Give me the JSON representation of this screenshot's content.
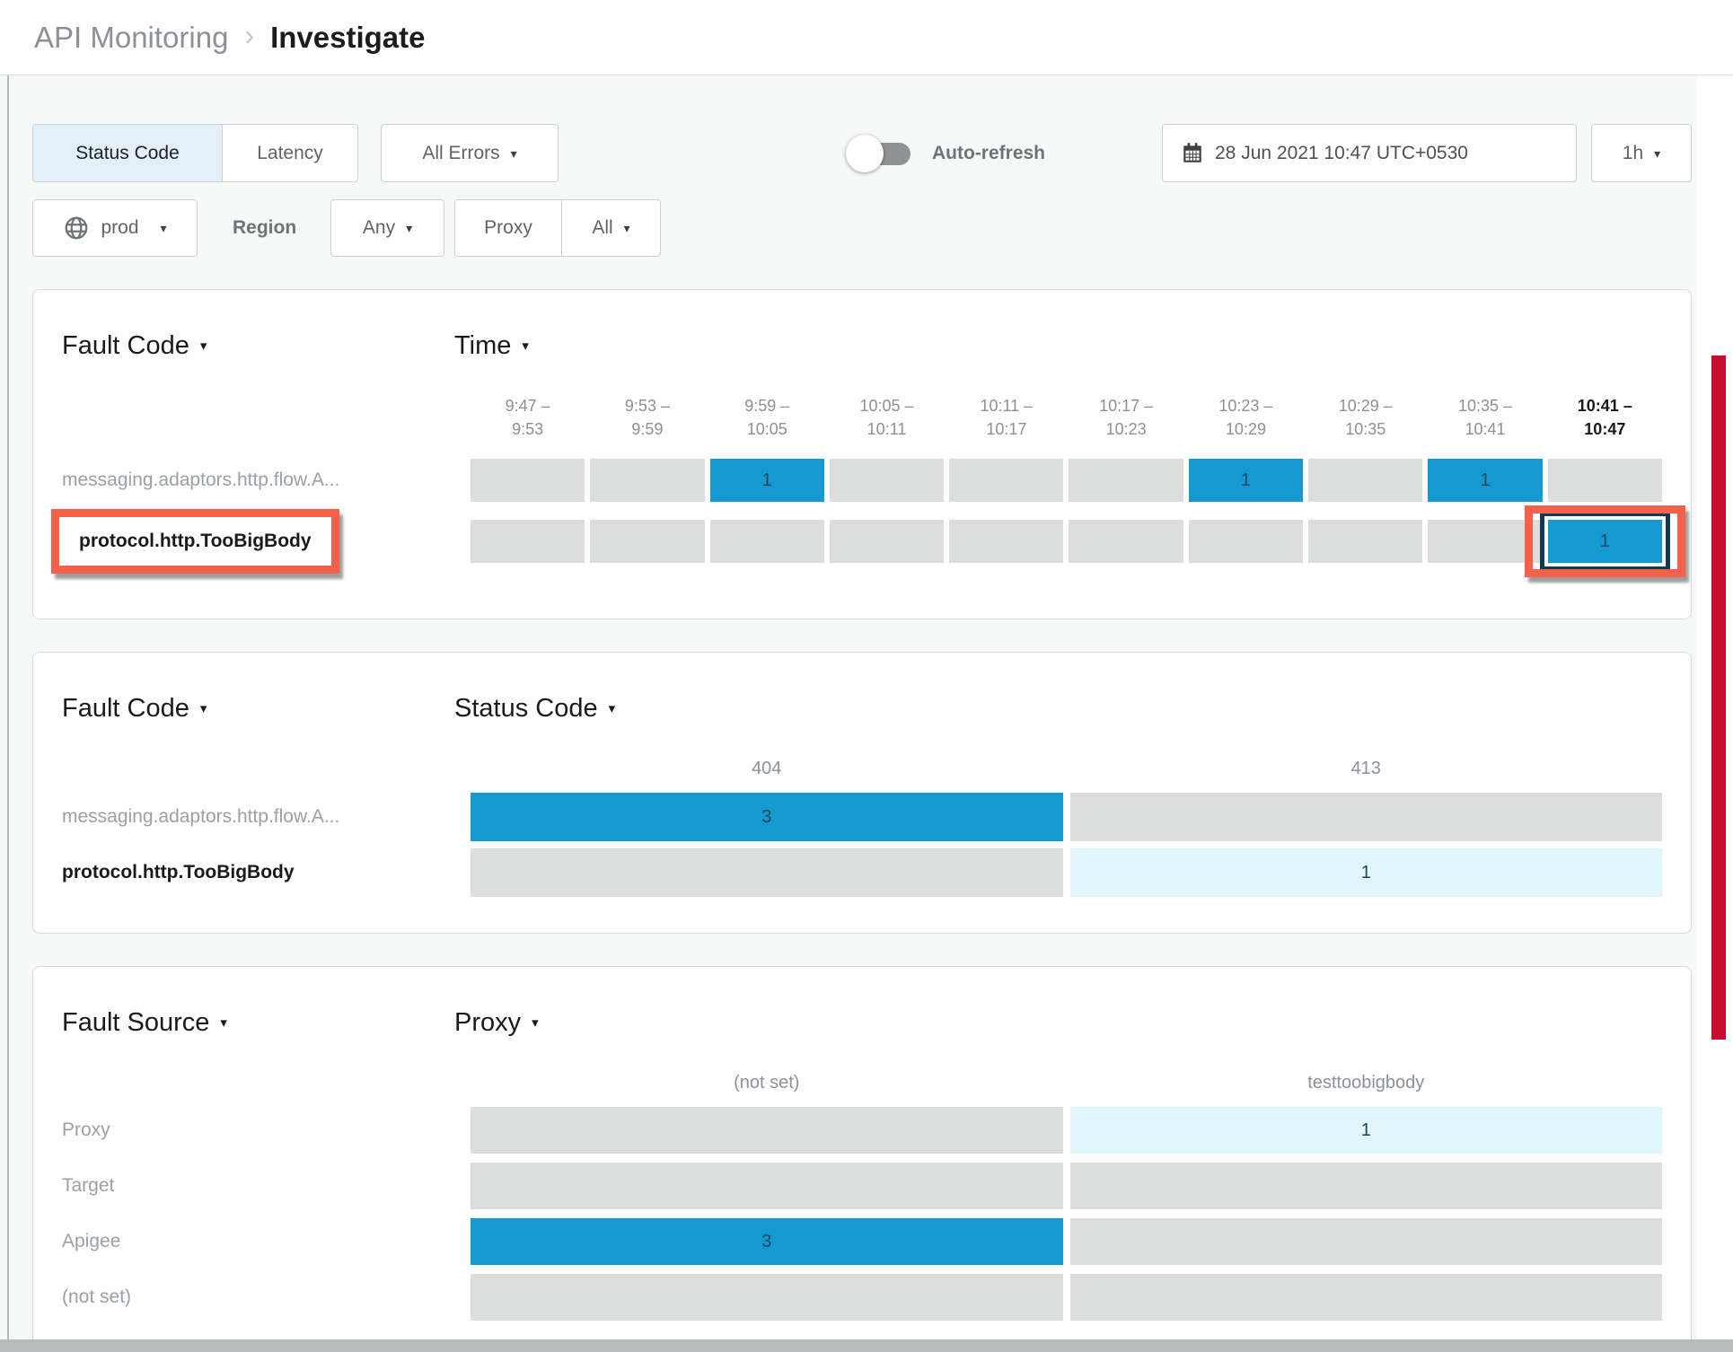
{
  "header": {
    "breadcrumb_section": "API Monitoring",
    "breadcrumb_separator": "›",
    "page_title": "Investigate"
  },
  "toolbar": {
    "metric_tabs": [
      {
        "label": "Status Code",
        "selected": true
      },
      {
        "label": "Latency",
        "selected": false
      }
    ],
    "errors_dropdown": {
      "label": "All Errors"
    },
    "auto_refresh": {
      "label": "Auto-refresh",
      "enabled": false
    },
    "datetime": {
      "value": "28 Jun 2021 10:47 UTC+0530"
    },
    "duration": {
      "value": "1h"
    },
    "environment": {
      "value": "prod"
    },
    "region": {
      "label": "Region",
      "value": "Any"
    },
    "proxy": {
      "label": "Proxy",
      "value": "All"
    }
  },
  "panels": [
    {
      "id": "fault-code-time",
      "row_dimension": "Fault Code",
      "col_dimension": "Time",
      "columns": [
        {
          "line1": "9:47 –",
          "line2": "9:53"
        },
        {
          "line1": "9:53 –",
          "line2": "9:59"
        },
        {
          "line1": "9:59 –",
          "line2": "10:05"
        },
        {
          "line1": "10:05 –",
          "line2": "10:11"
        },
        {
          "line1": "10:11 –",
          "line2": "10:17"
        },
        {
          "line1": "10:17 –",
          "line2": "10:23"
        },
        {
          "line1": "10:23 –",
          "line2": "10:29"
        },
        {
          "line1": "10:29 –",
          "line2": "10:35"
        },
        {
          "line1": "10:35 –",
          "line2": "10:41"
        },
        {
          "line1": "10:41 –",
          "line2": "10:47",
          "bold": true
        }
      ],
      "rows": [
        {
          "label": "messaging.adaptors.http.flow.A...",
          "bold": false,
          "cells": [
            {},
            {},
            {
              "value": "1",
              "state": "active"
            },
            {},
            {},
            {},
            {
              "value": "1",
              "state": "active"
            },
            {},
            {
              "value": "1",
              "state": "active"
            },
            {}
          ]
        },
        {
          "label": "protocol.http.TooBigBody",
          "bold": true,
          "label_annotated": true,
          "cells": [
            {},
            {},
            {},
            {},
            {},
            {},
            {},
            {},
            {},
            {
              "value": "1",
              "state": "active",
              "selected": true,
              "annotated": true
            }
          ]
        }
      ]
    },
    {
      "id": "fault-code-status-code",
      "row_dimension": "Fault Code",
      "col_dimension": "Status Code",
      "columns": [
        {
          "label": "404"
        },
        {
          "label": "413"
        }
      ],
      "rows": [
        {
          "label": "messaging.adaptors.http.flow.A...",
          "bold": false,
          "cells": [
            {
              "value": "3",
              "state": "active"
            },
            {}
          ]
        },
        {
          "label": "protocol.http.TooBigBody",
          "bold": true,
          "cells": [
            {},
            {
              "value": "1",
              "state": "light"
            }
          ]
        }
      ]
    },
    {
      "id": "fault-source-proxy",
      "row_dimension": "Fault Source",
      "col_dimension": "Proxy",
      "columns": [
        {
          "label": "(not set)"
        },
        {
          "label": "testtoobigbody"
        }
      ],
      "rows": [
        {
          "label": "Proxy",
          "bold": false,
          "cells": [
            {},
            {
              "value": "1",
              "state": "light"
            }
          ]
        },
        {
          "label": "Target",
          "bold": false,
          "cells": [
            {},
            {}
          ]
        },
        {
          "label": "Apigee",
          "bold": false,
          "cells": [
            {
              "value": "3",
              "state": "active"
            },
            {}
          ]
        },
        {
          "label": "(not set)",
          "bold": false,
          "cells": [
            {},
            {}
          ]
        }
      ]
    }
  ],
  "annotations": {
    "highlight_color": "#f4614b",
    "scroll_marker_color": "#c60d2e",
    "selected_cell_border": "#113a52"
  },
  "colors": {
    "active_cell": "#1698d1",
    "light_cell": "#e1f6fb",
    "empty_cell": "#dcdddd",
    "cell_text": "#17465f",
    "selected_tab_bg": "#e3f0fa",
    "page_bg": "#f7f9f9"
  }
}
